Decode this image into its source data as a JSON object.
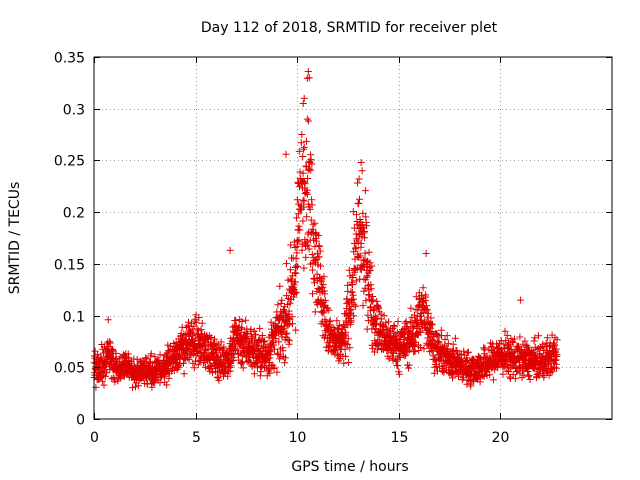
{
  "chart_data": {
    "type": "scatter",
    "title": "Day 112 of 2018, SRMTID for receiver plet",
    "xlabel": "GPS time / hours",
    "ylabel": "SRMTID / TECUs",
    "xlim": [
      0,
      25.5
    ],
    "ylim": [
      0,
      0.35
    ],
    "xticks": [
      0,
      5,
      10,
      15,
      20
    ],
    "xtick_labels": [
      "0",
      "5",
      "10",
      "15",
      "20"
    ],
    "yticks": [
      0,
      0.05,
      0.1,
      0.15,
      0.2,
      0.25,
      0.3,
      0.35
    ],
    "ytick_labels": [
      "0",
      "0.05",
      "0.1",
      "0.15",
      "0.2",
      "0.25",
      "0.3",
      "0.35"
    ],
    "grid": true,
    "marker": "+",
    "series": [
      {
        "name": "SRMTID",
        "color": "#e00000",
        "x_range": [
          0,
          22.8
        ],
        "n_points": 2600,
        "x": [
          0.2,
          0.7,
          1.1,
          1.6,
          2.0,
          2.5,
          3.0,
          3.4,
          3.9,
          4.3,
          4.7,
          5.0,
          5.5,
          6.0,
          6.4,
          6.7,
          7.0,
          7.5,
          8.0,
          8.5,
          9.0,
          9.4,
          9.8,
          10.2,
          10.5,
          10.8,
          11.1,
          11.5,
          11.9,
          12.3,
          12.6,
          13.0,
          13.4,
          13.8,
          14.2,
          14.6,
          15.0,
          15.5,
          16.0,
          16.3,
          16.7,
          17.2,
          17.6,
          18.0,
          18.5,
          19.0,
          19.5,
          20.0,
          20.5,
          21.0,
          21.5,
          22.0,
          22.5,
          22.8
        ],
        "y_center": [
          0.05,
          0.06,
          0.048,
          0.05,
          0.045,
          0.048,
          0.046,
          0.05,
          0.06,
          0.068,
          0.072,
          0.075,
          0.068,
          0.058,
          0.055,
          0.062,
          0.08,
          0.072,
          0.065,
          0.06,
          0.08,
          0.095,
          0.12,
          0.22,
          0.24,
          0.18,
          0.135,
          0.085,
          0.07,
          0.075,
          0.11,
          0.175,
          0.15,
          0.095,
          0.08,
          0.075,
          0.07,
          0.075,
          0.095,
          0.105,
          0.07,
          0.06,
          0.058,
          0.052,
          0.048,
          0.05,
          0.055,
          0.062,
          0.06,
          0.058,
          0.056,
          0.055,
          0.06,
          0.065
        ],
        "y_spread": [
          0.014,
          0.018,
          0.013,
          0.012,
          0.011,
          0.012,
          0.012,
          0.013,
          0.016,
          0.018,
          0.02,
          0.02,
          0.018,
          0.016,
          0.015,
          0.018,
          0.026,
          0.022,
          0.02,
          0.02,
          0.025,
          0.032,
          0.045,
          0.06,
          0.07,
          0.055,
          0.04,
          0.022,
          0.018,
          0.022,
          0.038,
          0.05,
          0.045,
          0.028,
          0.02,
          0.02,
          0.02,
          0.022,
          0.028,
          0.03,
          0.018,
          0.016,
          0.016,
          0.014,
          0.014,
          0.014,
          0.015,
          0.018,
          0.018,
          0.016,
          0.016,
          0.016,
          0.018,
          0.018
        ],
        "peak_values": [
          {
            "x": 10.55,
            "y": 0.336
          },
          {
            "x": 10.6,
            "y": 0.33
          },
          {
            "x": 10.35,
            "y": 0.31
          },
          {
            "x": 10.3,
            "y": 0.305
          },
          {
            "x": 10.5,
            "y": 0.29
          },
          {
            "x": 9.45,
            "y": 0.256
          },
          {
            "x": 13.15,
            "y": 0.248
          },
          {
            "x": 13.2,
            "y": 0.24
          },
          {
            "x": 13.05,
            "y": 0.232
          },
          {
            "x": 6.7,
            "y": 0.163
          },
          {
            "x": 16.35,
            "y": 0.16
          },
          {
            "x": 21.0,
            "y": 0.115
          },
          {
            "x": 0.7,
            "y": 0.096
          }
        ],
        "min_value": 0.016
      }
    ]
  }
}
